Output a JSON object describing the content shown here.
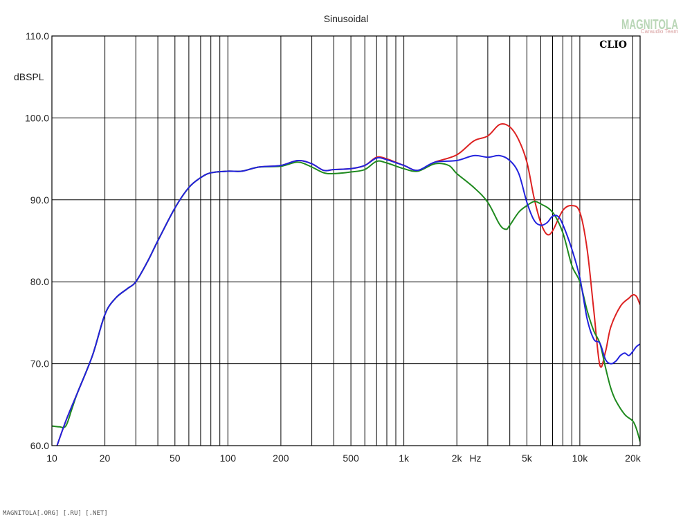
{
  "chart_data": {
    "type": "line",
    "title": "Sinusoidal",
    "ylabel": "dBSPL",
    "xunit": "Hz",
    "xscale": "log",
    "xlim": [
      10,
      22000
    ],
    "ylim": [
      60,
      110
    ],
    "grid": true,
    "x_ticks": [
      {
        "v": 10,
        "label": "10"
      },
      {
        "v": 20,
        "label": "20"
      },
      {
        "v": 50,
        "label": "50"
      },
      {
        "v": 100,
        "label": "100"
      },
      {
        "v": 200,
        "label": "200"
      },
      {
        "v": 500,
        "label": "500"
      },
      {
        "v": 1000,
        "label": "1k"
      },
      {
        "v": 2000,
        "label": "2k"
      },
      {
        "v": 5000,
        "label": "5k"
      },
      {
        "v": 10000,
        "label": "10k"
      },
      {
        "v": 20000,
        "label": "20k"
      }
    ],
    "y_ticks": [
      {
        "v": 60,
        "label": "60.0"
      },
      {
        "v": 70,
        "label": "70.0"
      },
      {
        "v": 80,
        "label": "80.0"
      },
      {
        "v": 90,
        "label": "90.0"
      },
      {
        "v": 100,
        "label": "100.0"
      },
      {
        "v": 110,
        "label": "110.0"
      }
    ],
    "series": [
      {
        "color": "#dd2222",
        "points": [
          [
            10.5,
            59.5
          ],
          [
            12,
            63
          ],
          [
            14,
            66.5
          ],
          [
            17,
            71
          ],
          [
            20,
            76
          ],
          [
            23,
            78
          ],
          [
            27,
            79.2
          ],
          [
            30,
            80
          ],
          [
            35,
            82.5
          ],
          [
            40,
            85
          ],
          [
            50,
            89
          ],
          [
            60,
            91.5
          ],
          [
            70,
            92.7
          ],
          [
            80,
            93.3
          ],
          [
            100,
            93.5
          ],
          [
            120,
            93.5
          ],
          [
            150,
            94
          ],
          [
            200,
            94.2
          ],
          [
            250,
            94.8
          ],
          [
            300,
            94.4
          ],
          [
            350,
            93.6
          ],
          [
            400,
            93.7
          ],
          [
            500,
            93.8
          ],
          [
            600,
            94.2
          ],
          [
            700,
            95.2
          ],
          [
            800,
            95
          ],
          [
            1000,
            94.2
          ],
          [
            1200,
            93.6
          ],
          [
            1500,
            94.6
          ],
          [
            2000,
            95.5
          ],
          [
            2500,
            97.2
          ],
          [
            3000,
            97.8
          ],
          [
            3500,
            99.2
          ],
          [
            4000,
            98.9
          ],
          [
            4500,
            97.3
          ],
          [
            5000,
            94.6
          ],
          [
            5500,
            90.2
          ],
          [
            6000,
            87.2
          ],
          [
            6500,
            85.8
          ],
          [
            7000,
            86.2
          ],
          [
            8000,
            88.7
          ],
          [
            9000,
            89.3
          ],
          [
            10000,
            88.5
          ],
          [
            11000,
            84
          ],
          [
            12000,
            76.5
          ],
          [
            13000,
            69.8
          ],
          [
            14000,
            71.5
          ],
          [
            15000,
            74.5
          ],
          [
            17000,
            77
          ],
          [
            19000,
            78
          ],
          [
            20000,
            78.4
          ],
          [
            21000,
            78.2
          ],
          [
            22000,
            77.2
          ]
        ]
      },
      {
        "color": "#1f8a1f",
        "points": [
          [
            10,
            62.4
          ],
          [
            11,
            62.3
          ],
          [
            12,
            62.4
          ],
          [
            13,
            64.5
          ],
          [
            14,
            66.5
          ],
          [
            17,
            71
          ],
          [
            20,
            76
          ],
          [
            23,
            78
          ],
          [
            27,
            79.2
          ],
          [
            30,
            80
          ],
          [
            35,
            82.5
          ],
          [
            40,
            85
          ],
          [
            50,
            89
          ],
          [
            60,
            91.5
          ],
          [
            70,
            92.7
          ],
          [
            80,
            93.3
          ],
          [
            100,
            93.5
          ],
          [
            120,
            93.5
          ],
          [
            150,
            94
          ],
          [
            200,
            94.1
          ],
          [
            250,
            94.6
          ],
          [
            300,
            94
          ],
          [
            350,
            93.3
          ],
          [
            400,
            93.2
          ],
          [
            500,
            93.4
          ],
          [
            600,
            93.7
          ],
          [
            700,
            94.7
          ],
          [
            800,
            94.5
          ],
          [
            1000,
            93.8
          ],
          [
            1200,
            93.5
          ],
          [
            1500,
            94.4
          ],
          [
            1800,
            94.2
          ],
          [
            2000,
            93.2
          ],
          [
            2500,
            91.5
          ],
          [
            3000,
            89.7
          ],
          [
            3500,
            87
          ],
          [
            3800,
            86.4
          ],
          [
            4000,
            86.9
          ],
          [
            4500,
            88.5
          ],
          [
            5000,
            89.3
          ],
          [
            5500,
            89.8
          ],
          [
            6000,
            89.5
          ],
          [
            7000,
            88.5
          ],
          [
            8000,
            86
          ],
          [
            9000,
            82
          ],
          [
            10000,
            80
          ],
          [
            11000,
            76.5
          ],
          [
            12000,
            74
          ],
          [
            13000,
            72.5
          ],
          [
            14000,
            69.5
          ],
          [
            15000,
            67
          ],
          [
            16000,
            65.5
          ],
          [
            18000,
            63.8
          ],
          [
            20000,
            63
          ],
          [
            21000,
            62
          ],
          [
            22000,
            60.5
          ]
        ]
      },
      {
        "color": "#2222dd",
        "points": [
          [
            10.5,
            59.5
          ],
          [
            12,
            63
          ],
          [
            14,
            66.5
          ],
          [
            17,
            71
          ],
          [
            20,
            76
          ],
          [
            23,
            78
          ],
          [
            27,
            79.2
          ],
          [
            30,
            80
          ],
          [
            35,
            82.5
          ],
          [
            40,
            85
          ],
          [
            50,
            89
          ],
          [
            60,
            91.5
          ],
          [
            70,
            92.7
          ],
          [
            80,
            93.3
          ],
          [
            100,
            93.5
          ],
          [
            120,
            93.5
          ],
          [
            150,
            94
          ],
          [
            200,
            94.2
          ],
          [
            250,
            94.8
          ],
          [
            300,
            94.4
          ],
          [
            350,
            93.6
          ],
          [
            400,
            93.7
          ],
          [
            500,
            93.8
          ],
          [
            600,
            94.2
          ],
          [
            700,
            95.1
          ],
          [
            800,
            94.9
          ],
          [
            1000,
            94.2
          ],
          [
            1200,
            93.6
          ],
          [
            1500,
            94.6
          ],
          [
            2000,
            94.8
          ],
          [
            2500,
            95.4
          ],
          [
            3000,
            95.2
          ],
          [
            3500,
            95.4
          ],
          [
            4000,
            94.8
          ],
          [
            4500,
            93.2
          ],
          [
            5000,
            89.7
          ],
          [
            5500,
            87.5
          ],
          [
            6000,
            86.9
          ],
          [
            6500,
            87.2
          ],
          [
            7000,
            88
          ],
          [
            7500,
            88
          ],
          [
            8000,
            87
          ],
          [
            9000,
            84
          ],
          [
            10000,
            80.5
          ],
          [
            11000,
            75.5
          ],
          [
            12000,
            73
          ],
          [
            13000,
            72.5
          ],
          [
            14000,
            70.5
          ],
          [
            15000,
            70
          ],
          [
            16000,
            70.3
          ],
          [
            17000,
            71
          ],
          [
            18000,
            71.3
          ],
          [
            19000,
            71
          ],
          [
            20000,
            71.5
          ],
          [
            21000,
            72.1
          ],
          [
            22000,
            72.4
          ]
        ]
      }
    ]
  },
  "brand": "CLIO",
  "watermark": {
    "main": "MAGNITOLA",
    "sub": "Caraudio Team"
  },
  "footer": "MAGNITOLA[.ORG] [.RU] [.NET]"
}
